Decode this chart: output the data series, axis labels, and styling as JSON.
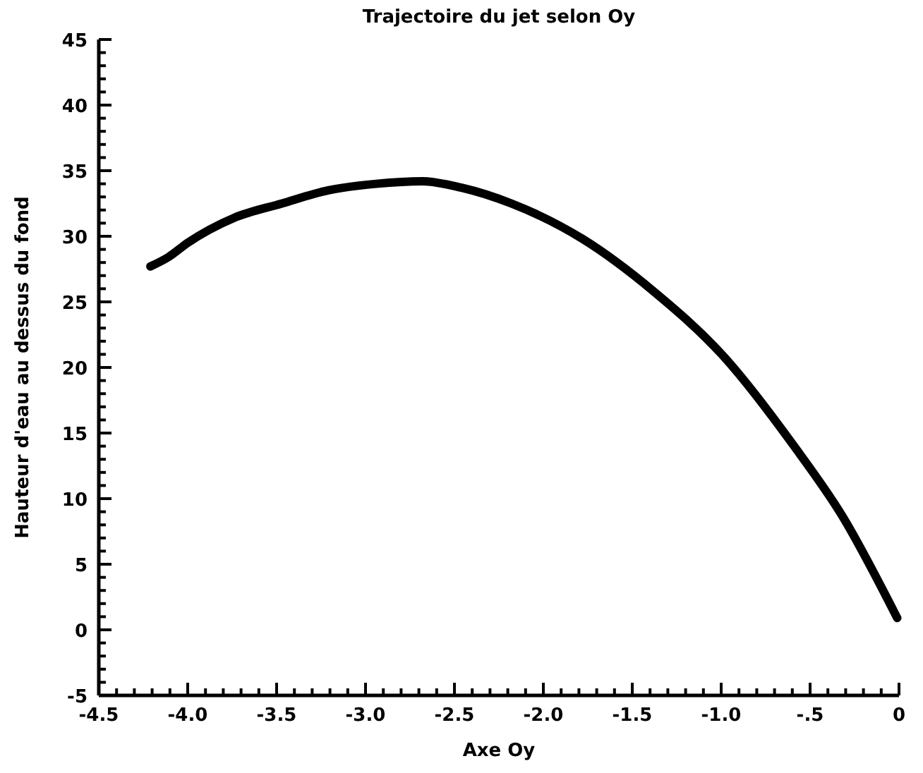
{
  "chart_data": {
    "type": "line",
    "title": "Trajectoire du jet selon Oy",
    "xlabel": "Axe Oy",
    "ylabel": "Hauteur d'eau au dessus du fond",
    "xlim": [
      -4.5,
      0
    ],
    "ylim": [
      -5,
      45
    ],
    "xticks": [
      {
        "value": -4.5,
        "label": "-4.5"
      },
      {
        "value": -4.4,
        "label": null
      },
      {
        "value": -4.3,
        "label": null
      },
      {
        "value": -4.2,
        "label": null
      },
      {
        "value": -4.1,
        "label": null
      },
      {
        "value": -4.0,
        "label": "-4.0"
      },
      {
        "value": -3.9,
        "label": null
      },
      {
        "value": -3.8,
        "label": null
      },
      {
        "value": -3.7,
        "label": null
      },
      {
        "value": -3.6,
        "label": null
      },
      {
        "value": -3.5,
        "label": "-3.5"
      },
      {
        "value": -3.4,
        "label": null
      },
      {
        "value": -3.3,
        "label": null
      },
      {
        "value": -3.2,
        "label": null
      },
      {
        "value": -3.1,
        "label": null
      },
      {
        "value": -3.0,
        "label": "-3.0"
      },
      {
        "value": -2.9,
        "label": null
      },
      {
        "value": -2.8,
        "label": null
      },
      {
        "value": -2.7,
        "label": null
      },
      {
        "value": -2.6,
        "label": null
      },
      {
        "value": -2.5,
        "label": "-2.5"
      },
      {
        "value": -2.4,
        "label": null
      },
      {
        "value": -2.3,
        "label": null
      },
      {
        "value": -2.2,
        "label": null
      },
      {
        "value": -2.1,
        "label": null
      },
      {
        "value": -2.0,
        "label": "-2.0"
      },
      {
        "value": -1.9,
        "label": null
      },
      {
        "value": -1.8,
        "label": null
      },
      {
        "value": -1.7,
        "label": null
      },
      {
        "value": -1.6,
        "label": null
      },
      {
        "value": -1.5,
        "label": "-1.5"
      },
      {
        "value": -1.4,
        "label": null
      },
      {
        "value": -1.3,
        "label": null
      },
      {
        "value": -1.2,
        "label": null
      },
      {
        "value": -1.1,
        "label": null
      },
      {
        "value": -1.0,
        "label": "-1.0"
      },
      {
        "value": -0.9,
        "label": null
      },
      {
        "value": -0.8,
        "label": null
      },
      {
        "value": -0.7,
        "label": null
      },
      {
        "value": -0.6,
        "label": null
      },
      {
        "value": -0.5,
        "label": "-.5"
      },
      {
        "value": -0.4,
        "label": null
      },
      {
        "value": -0.3,
        "label": null
      },
      {
        "value": -0.2,
        "label": null
      },
      {
        "value": -0.1,
        "label": null
      },
      0
    ],
    "yticks": [
      -5,
      {
        "value": -4,
        "label": null
      },
      {
        "value": -3,
        "label": null
      },
      {
        "value": -2,
        "label": null
      },
      {
        "value": -1,
        "label": null
      },
      0,
      {
        "value": 1,
        "label": null
      },
      {
        "value": 2,
        "label": null
      },
      {
        "value": 3,
        "label": null
      },
      {
        "value": 4,
        "label": null
      },
      5,
      {
        "value": 6,
        "label": null
      },
      {
        "value": 7,
        "label": null
      },
      {
        "value": 8,
        "label": null
      },
      {
        "value": 9,
        "label": null
      },
      10,
      {
        "value": 11,
        "label": null
      },
      {
        "value": 12,
        "label": null
      },
      {
        "value": 13,
        "label": null
      },
      {
        "value": 14,
        "label": null
      },
      15,
      {
        "value": 16,
        "label": null
      },
      {
        "value": 17,
        "label": null
      },
      {
        "value": 18,
        "label": null
      },
      {
        "value": 19,
        "label": null
      },
      20,
      {
        "value": 21,
        "label": null
      },
      {
        "value": 22,
        "label": null
      },
      {
        "value": 23,
        "label": null
      },
      {
        "value": 24,
        "label": null
      },
      25,
      {
        "value": 26,
        "label": null
      },
      {
        "value": 27,
        "label": null
      },
      {
        "value": 28,
        "label": null
      },
      {
        "value": 29,
        "label": null
      },
      30,
      {
        "value": 31,
        "label": null
      },
      {
        "value": 32,
        "label": null
      },
      {
        "value": 33,
        "label": null
      },
      {
        "value": 34,
        "label": null
      },
      35,
      {
        "value": 36,
        "label": null
      },
      {
        "value": 37,
        "label": null
      },
      {
        "value": 38,
        "label": null
      },
      {
        "value": 39,
        "label": null
      },
      40,
      {
        "value": 41,
        "label": null
      },
      {
        "value": 42,
        "label": null
      },
      {
        "value": 43,
        "label": null
      },
      {
        "value": 44,
        "label": null
      },
      45
    ],
    "x": [
      -4.21,
      -4.11,
      -4.0,
      -3.74,
      -3.47,
      -3.21,
      -2.94,
      -2.68,
      -2.46,
      -2.18,
      -1.78,
      -1.38,
      -0.99,
      -0.59,
      -0.32,
      -0.01
    ],
    "series": [
      {
        "color": "#000000",
        "values": [
          27.7,
          28.4,
          29.5,
          31.4,
          32.5,
          33.5,
          34.0,
          34.2,
          33.7,
          32.5,
          29.8,
          25.8,
          20.9,
          14.0,
          8.7,
          0.9
        ]
      }
    ],
    "grid": false,
    "marker": "none",
    "line_style": "solid"
  }
}
